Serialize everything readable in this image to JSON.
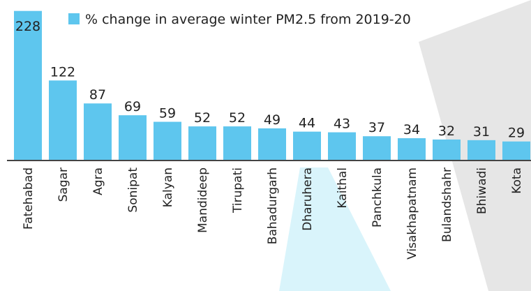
{
  "chart_data": {
    "type": "bar",
    "legend": "% change in average winter PM2.5 from 2019-20",
    "color": "#5ec6ee",
    "categories": [
      "Fatehabad",
      "Sagar",
      "Agra",
      "Sonipat",
      "Kalyan",
      "Mandideep",
      "Tirupati",
      "Bahadurgarh",
      "Dharuhera",
      "Kaithal",
      "Panchkula",
      "Visakhapatnam",
      "Bulandshahr",
      "Bhiwadi",
      "Kota"
    ],
    "values": [
      228,
      122,
      87,
      69,
      59,
      52,
      52,
      49,
      44,
      43,
      37,
      34,
      32,
      31,
      29
    ]
  }
}
